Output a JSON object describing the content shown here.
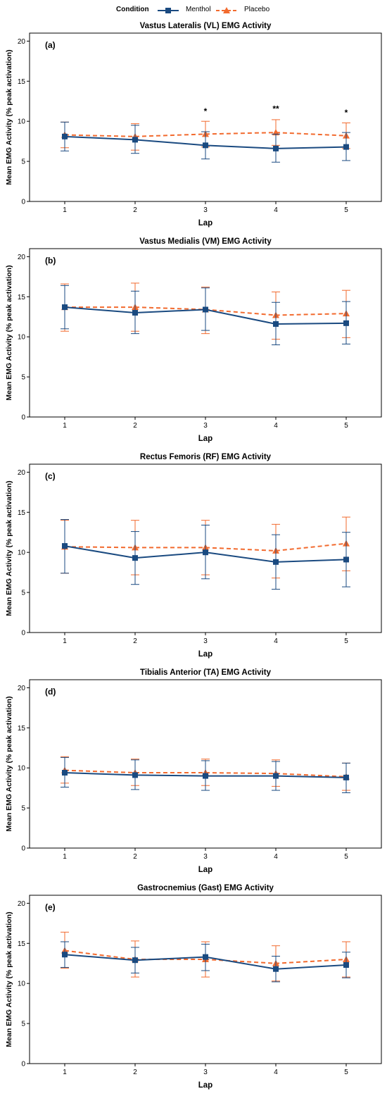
{
  "legend": {
    "title": "Condition",
    "items": [
      {
        "name": "Menthol",
        "color": "#1a4a80",
        "marker": "square",
        "dash": "solid"
      },
      {
        "name": "Placebo",
        "color": "#f26a2e",
        "marker": "triangle",
        "dash": "dashed"
      }
    ]
  },
  "chart_data": [
    {
      "type": "line",
      "title": "Vastus Lateralis (VL) EMG Activity",
      "panel_label": "(a)",
      "xlabel": "Lap",
      "ylabel": "Mean EMG Activity (% peak activation)",
      "x": [
        1,
        2,
        3,
        4,
        5
      ],
      "ylim": [
        0,
        21
      ],
      "yticks": [
        0,
        5,
        10,
        15,
        20
      ],
      "series": [
        {
          "name": "Menthol",
          "values": [
            8.1,
            7.7,
            7.0,
            6.6,
            6.8
          ],
          "lower": [
            6.3,
            6.0,
            5.3,
            4.9,
            5.1
          ],
          "upper": [
            9.9,
            9.5,
            8.7,
            8.4,
            8.6
          ]
        },
        {
          "name": "Placebo",
          "values": [
            8.3,
            8.1,
            8.4,
            8.6,
            8.2
          ],
          "lower": [
            6.7,
            6.4,
            6.8,
            7.0,
            6.6
          ],
          "upper": [
            9.9,
            9.7,
            10.0,
            10.2,
            9.8
          ]
        }
      ],
      "annotations": [
        {
          "x": 3,
          "y": 10.9,
          "text": "*"
        },
        {
          "x": 4,
          "y": 11.2,
          "text": "**"
        },
        {
          "x": 5,
          "y": 10.7,
          "text": "*"
        }
      ]
    },
    {
      "type": "line",
      "title": "Vastus Medialis (VM) EMG Activity",
      "panel_label": "(b)",
      "xlabel": "Lap",
      "ylabel": "Mean EMG Activity (% peak activation)",
      "x": [
        1,
        2,
        3,
        4,
        5
      ],
      "ylim": [
        0,
        21
      ],
      "yticks": [
        0,
        5,
        10,
        15,
        20
      ],
      "series": [
        {
          "name": "Menthol",
          "values": [
            13.7,
            13.0,
            13.4,
            11.6,
            11.7
          ],
          "lower": [
            11.0,
            10.4,
            10.8,
            9.0,
            9.1
          ],
          "upper": [
            16.4,
            15.7,
            16.1,
            14.3,
            14.4
          ]
        },
        {
          "name": "Placebo",
          "values": [
            13.7,
            13.7,
            13.4,
            12.7,
            12.9
          ],
          "lower": [
            10.7,
            10.7,
            10.4,
            9.7,
            9.9
          ],
          "upper": [
            16.6,
            16.7,
            16.2,
            15.6,
            15.8
          ]
        }
      ],
      "annotations": []
    },
    {
      "type": "line",
      "title": "Rectus Femoris (RF) EMG Activity",
      "panel_label": "(c)",
      "xlabel": "Lap",
      "ylabel": "Mean EMG Activity (% peak activation)",
      "x": [
        1,
        2,
        3,
        4,
        5
      ],
      "ylim": [
        0,
        21
      ],
      "yticks": [
        0,
        5,
        10,
        15,
        20
      ],
      "series": [
        {
          "name": "Menthol",
          "values": [
            10.8,
            9.3,
            10.0,
            8.8,
            9.1
          ],
          "lower": [
            7.4,
            6.0,
            6.7,
            5.4,
            5.7
          ],
          "upper": [
            14.1,
            12.6,
            13.4,
            12.2,
            12.5
          ]
        },
        {
          "name": "Placebo",
          "values": [
            10.7,
            10.6,
            10.6,
            10.2,
            11.1
          ],
          "lower": [
            7.4,
            7.2,
            7.2,
            6.8,
            7.7
          ],
          "upper": [
            14.0,
            14.0,
            14.0,
            13.5,
            14.4
          ]
        }
      ],
      "annotations": []
    },
    {
      "type": "line",
      "title": "Tibialis Anterior (TA) EMG Activity",
      "panel_label": "(d)",
      "xlabel": "Lap",
      "ylabel": "Mean EMG Activity (% peak activation)",
      "x": [
        1,
        2,
        3,
        4,
        5
      ],
      "ylim": [
        0,
        21
      ],
      "yticks": [
        0,
        5,
        10,
        15,
        20
      ],
      "series": [
        {
          "name": "Menthol",
          "values": [
            9.4,
            9.1,
            9.0,
            9.0,
            8.8
          ],
          "lower": [
            7.6,
            7.3,
            7.2,
            7.2,
            6.9
          ],
          "upper": [
            11.3,
            11.0,
            10.9,
            10.8,
            10.6
          ]
        },
        {
          "name": "Placebo",
          "values": [
            9.7,
            9.4,
            9.4,
            9.3,
            8.9
          ],
          "lower": [
            8.1,
            7.8,
            7.8,
            7.7,
            7.2
          ],
          "upper": [
            11.4,
            11.1,
            11.1,
            11.0,
            10.6
          ]
        }
      ],
      "annotations": []
    },
    {
      "type": "line",
      "title": "Gastrocnemius (Gast) EMG Activity",
      "panel_label": "(e)",
      "xlabel": "Lap",
      "ylabel": "Mean EMG Activity (% peak activation)",
      "x": [
        1,
        2,
        3,
        4,
        5
      ],
      "ylim": [
        0,
        21
      ],
      "yticks": [
        0,
        5,
        10,
        15,
        20
      ],
      "series": [
        {
          "name": "Menthol",
          "values": [
            13.6,
            12.9,
            13.3,
            11.8,
            12.3
          ],
          "lower": [
            12.0,
            11.3,
            11.6,
            10.2,
            10.7
          ],
          "upper": [
            15.2,
            14.5,
            14.9,
            13.4,
            13.9
          ]
        },
        {
          "name": "Placebo",
          "values": [
            14.1,
            13.0,
            13.0,
            12.5,
            13.0
          ],
          "lower": [
            11.9,
            10.8,
            10.8,
            10.3,
            10.8
          ],
          "upper": [
            16.4,
            15.3,
            15.2,
            14.7,
            15.2
          ]
        }
      ],
      "annotations": []
    }
  ]
}
